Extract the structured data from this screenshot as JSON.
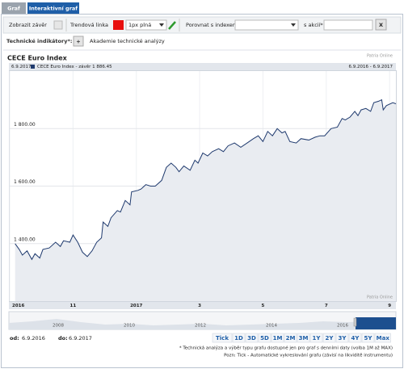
{
  "tabs": [
    "Graf",
    "Interaktivní graf"
  ],
  "toolbar": {
    "show_close": "Zobrazit závěr",
    "trend_line": "Trendová linka",
    "line_style": "1px plná",
    "compare_index": "Porovnat s indexem*",
    "with_stock": "s akcií*",
    "remove": "X"
  },
  "indicators": {
    "label": "Technické indikátory*:",
    "add": "+",
    "academy": "Akademie technické analýzy"
  },
  "chart_data": {
    "type": "line",
    "title": "CECE Euro Index",
    "watermark": "Patria Online",
    "date": "6.9.2017",
    "range": "6.9.2016 - 6.9.2017",
    "x": [
      0.17,
      0.3,
      0.4,
      0.55,
      0.7,
      0.8,
      0.95,
      1.05,
      1.25,
      1.45,
      1.6,
      1.7,
      1.9,
      2.0,
      2.15,
      2.3,
      2.45,
      2.6,
      2.75,
      2.9,
      2.95,
      3.1,
      3.2,
      3.4,
      3.5,
      3.65,
      3.8,
      3.85,
      4.05,
      4.15,
      4.3,
      4.45,
      4.6,
      4.8,
      4.95,
      5.1,
      5.25,
      5.35,
      5.5,
      5.7,
      5.85,
      5.95,
      6.1,
      6.25,
      6.4,
      6.6,
      6.75,
      6.9,
      7.1,
      7.3,
      7.5,
      7.7,
      7.85,
      8.0,
      8.15,
      8.3,
      8.45,
      8.6,
      8.7,
      8.85,
      9.05,
      9.2,
      9.45,
      9.65,
      9.8,
      9.95,
      10.15,
      10.35,
      10.5,
      10.6,
      10.75,
      10.9,
      11.0,
      11.1,
      11.25,
      11.4,
      11.5,
      11.65,
      11.75,
      11.8,
      11.9,
      12.1,
      12.2
    ],
    "series": [
      {
        "name": "CECE Euro Index - závěr 1 886.45",
        "color": "#1f3a6e",
        "values": [
          1400,
          1380,
          1360,
          1375,
          1345,
          1365,
          1350,
          1380,
          1385,
          1405,
          1390,
          1410,
          1405,
          1430,
          1405,
          1370,
          1355,
          1375,
          1405,
          1420,
          1475,
          1460,
          1490,
          1515,
          1510,
          1550,
          1535,
          1580,
          1585,
          1590,
          1605,
          1600,
          1600,
          1620,
          1665,
          1680,
          1665,
          1650,
          1670,
          1655,
          1690,
          1680,
          1715,
          1705,
          1720,
          1730,
          1720,
          1740,
          1750,
          1735,
          1750,
          1765,
          1775,
          1755,
          1790,
          1775,
          1800,
          1785,
          1790,
          1755,
          1750,
          1765,
          1760,
          1770,
          1775,
          1775,
          1800,
          1805,
          1835,
          1830,
          1840,
          1860,
          1845,
          1865,
          1870,
          1860,
          1890,
          1895,
          1900,
          1865,
          1880,
          1890,
          1886.45
        ]
      }
    ],
    "xlim": [
      0,
      12.2
    ],
    "xticks": [
      {
        "value": 0,
        "label": "2016"
      },
      {
        "value": 2,
        "label": "11"
      },
      {
        "value": 4,
        "label": "2017"
      },
      {
        "value": 6,
        "label": "3"
      },
      {
        "value": 8,
        "label": "5"
      },
      {
        "value": 10,
        "label": "7"
      },
      {
        "value": 12,
        "label": "9"
      }
    ],
    "ylim": [
      1200,
      2000
    ],
    "yticks": [
      {
        "value": 1400,
        "label": "1 400.00"
      },
      {
        "value": 1600,
        "label": "1 600.00"
      },
      {
        "value": 1800,
        "label": "1 800.00"
      }
    ],
    "grid": true,
    "navigator_labels": [
      "2008",
      "2010",
      "2012",
      "2014",
      "2016"
    ]
  },
  "footer": {
    "from_label": "od:",
    "from": "6.9.2016",
    "to_label": "do:",
    "to": "6.9.2017",
    "periods": [
      "Tick",
      "1D",
      "3D",
      "5D",
      "1M",
      "2M",
      "3M",
      "1Y",
      "2Y",
      "3Y",
      "4Y",
      "5Y",
      "Max"
    ],
    "notes": [
      "* Technická analýza a výběr typu grafu dostupné jen pro graf s denními daty (volba 1M až MAX)",
      "Pozn: Tick - Automatické vykreslování grafu (závisí na likviditě instrumentu)"
    ]
  }
}
